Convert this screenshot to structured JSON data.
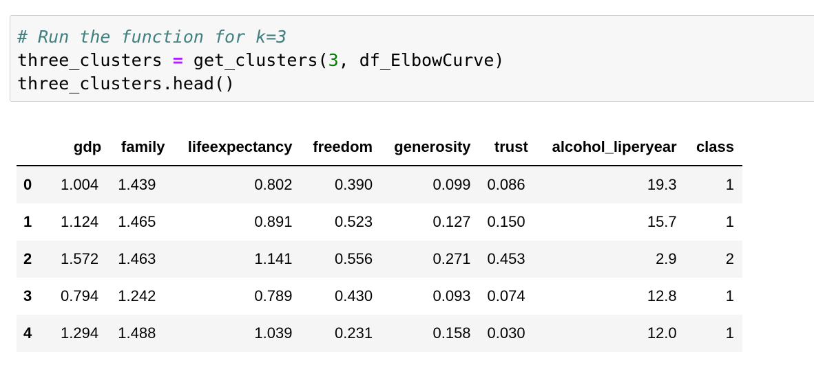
{
  "code_cell": {
    "comment": "# Run the function for k=3",
    "line2_var": "three_clusters ",
    "line2_op": "=",
    "line2_call": " get_clusters(",
    "line2_num": "3",
    "line2_rest": ", df_ElbowCurve)",
    "line3": "three_clusters.head()"
  },
  "dataframe": {
    "index_header": "",
    "columns": [
      "gdp",
      "family",
      "lifeexpectancy",
      "freedom",
      "generosity",
      "trust",
      "alcohol_liperyear",
      "class"
    ],
    "rows": [
      {
        "index": "0",
        "cells": [
          "1.004",
          "1.439",
          "0.802",
          "0.390",
          "0.099",
          "0.086",
          "19.3",
          "1"
        ]
      },
      {
        "index": "1",
        "cells": [
          "1.124",
          "1.465",
          "0.891",
          "0.523",
          "0.127",
          "0.150",
          "15.7",
          "1"
        ]
      },
      {
        "index": "2",
        "cells": [
          "1.572",
          "1.463",
          "1.141",
          "0.556",
          "0.271",
          "0.453",
          "2.9",
          "2"
        ]
      },
      {
        "index": "3",
        "cells": [
          "0.794",
          "1.242",
          "0.789",
          "0.430",
          "0.093",
          "0.074",
          "12.8",
          "1"
        ]
      },
      {
        "index": "4",
        "cells": [
          "1.294",
          "1.488",
          "1.039",
          "0.231",
          "0.158",
          "0.030",
          "12.0",
          "1"
        ]
      }
    ]
  }
}
